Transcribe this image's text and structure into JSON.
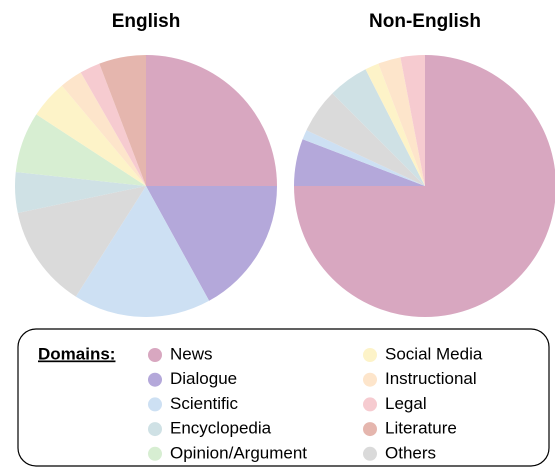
{
  "chart_data": [
    {
      "type": "pie",
      "title": "English",
      "categories": [
        "News",
        "Dialogue",
        "Scientific",
        "Encyclopedia",
        "Opinion/Argument",
        "Social Media",
        "Instructional",
        "Legal",
        "Literature",
        "Others"
      ],
      "values": [
        25,
        17,
        17,
        5,
        7.5,
        4.7,
        2.8,
        2.5,
        5.8,
        12.7
      ],
      "colors": [
        "#d8a7c0",
        "#b4a8da",
        "#cde0f3",
        "#cfe1e5",
        "#d7eed2",
        "#fdf3c8",
        "#fde5cb",
        "#f6cbd0",
        "#e5b6ae",
        "#dadada"
      ]
    },
    {
      "type": "pie",
      "title": "Non-English",
      "categories": [
        "News",
        "Dialogue",
        "Scientific",
        "Encyclopedia",
        "Opinion/Argument",
        "Social Media",
        "Instructional",
        "Legal",
        "Literature",
        "Others"
      ],
      "values": [
        75,
        5.8,
        1.2,
        5,
        0,
        1.7,
        2.8,
        3,
        0,
        5.5
      ],
      "colors": [
        "#d8a7c0",
        "#b4a8da",
        "#cde0f3",
        "#cfe1e5",
        "#d7eed2",
        "#fdf3c8",
        "#fde5cb",
        "#f6cbd0",
        "#e5b6ae",
        "#dadada"
      ]
    }
  ],
  "legend_title": "Domains:"
}
